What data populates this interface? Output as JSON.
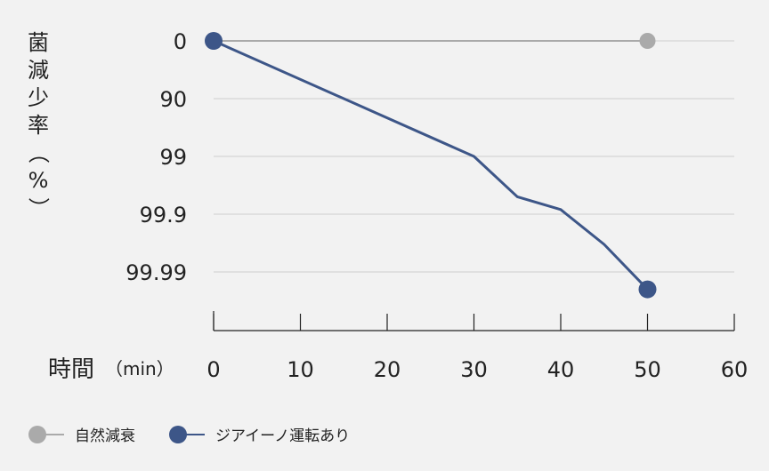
{
  "chart_data": {
    "type": "line",
    "ylabel": "菌減少率（%）",
    "ylabel_chars": [
      "菌",
      "減",
      "少",
      "率",
      "（",
      "%",
      "）"
    ],
    "xlabel": "時間",
    "xlabel_unit": "（min）",
    "x_ticks": [
      "0",
      "10",
      "20",
      "30",
      "40",
      "50",
      "60"
    ],
    "xlim": [
      0,
      60
    ],
    "y_scale": "log-reduction",
    "y_ticks": [
      "0",
      "90",
      "99",
      "99.9",
      "99.99"
    ],
    "ylim": [
      0,
      5
    ],
    "grid": true,
    "legend_position": "bottom-left",
    "series": [
      {
        "name": "自然減衰",
        "color": "#aaaaaa",
        "x": [
          0,
          50
        ],
        "y": [
          "0",
          "0"
        ],
        "markers": [
          0,
          50
        ]
      },
      {
        "name": "ジアイーノ運転あり",
        "color": "#3d5688",
        "x": [
          0,
          30,
          35,
          40,
          45,
          50
        ],
        "y": [
          "0",
          "99",
          "99.8",
          "99.88",
          "99.97",
          "99.995"
        ],
        "markers": [
          0,
          50
        ]
      }
    ]
  },
  "legend": {
    "items": [
      {
        "label": "自然減衰",
        "color": "#aaaaaa"
      },
      {
        "label": "ジアイーノ運転あり",
        "color": "#3d5688"
      }
    ]
  }
}
